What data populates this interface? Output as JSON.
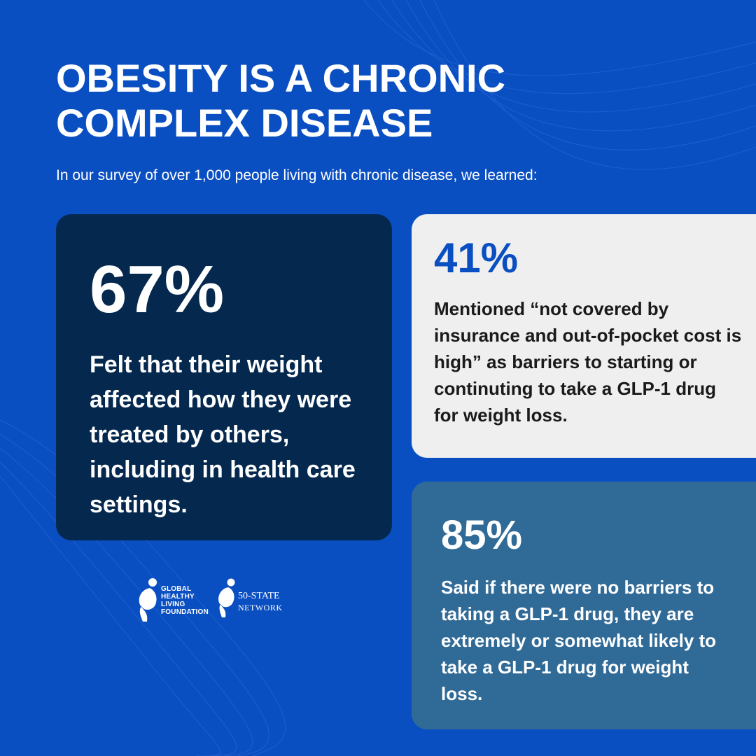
{
  "header": {
    "title_line1": "OBESITY IS A CHRONIC",
    "title_line2": "COMPLEX DISEASE",
    "subtitle": "In our survey of over 1,000 people living with chronic disease, we learned:"
  },
  "cards": [
    {
      "stat": "67%",
      "description": "Felt that their weight affected how they were treated by others, including in health care settings."
    },
    {
      "stat": "41%",
      "description": "Mentioned “not covered by insurance and out-of-pocket cost is high” as barriers to starting or continuting to take a GLP-1 drug for weight loss."
    },
    {
      "stat": "85%",
      "description": "Said if there were no barriers to taking a GLP-1 drug, they are extremely or somewhat likely to take a GLP-1 drug for weight loss."
    }
  ],
  "logos": {
    "ghlf": {
      "icon": "ghlf-figure-icon",
      "line1": "GLOBAL",
      "line2": "HEALTHY",
      "line3": "LIVING",
      "line4": "FOUNDATION"
    },
    "network": {
      "icon": "network-figure-icon",
      "line1": "50-STATE",
      "line2": "NETWORK"
    }
  },
  "colors": {
    "background": "#0a4fc2",
    "card_dark": "#05284e",
    "card_light": "#efefef",
    "card_mid": "#306a97",
    "accent": "#0a4fc2"
  }
}
